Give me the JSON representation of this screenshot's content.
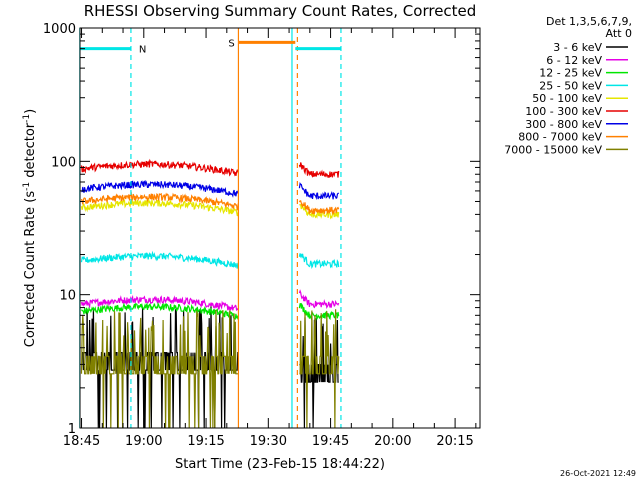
{
  "chart_data": {
    "type": "line",
    "title": "RHESSI Observing Summary Count Rates, Corrected",
    "xlabel": "Start Time (23-Feb-15 18:44:22)",
    "ylabel_main": "Corrected Count Rate (s",
    "ylabel_sup1": "-1",
    "ylabel_mid": " detector",
    "ylabel_sup2": "-1",
    "ylabel_end": ")",
    "y_scale": "log",
    "ylim": [
      1,
      1000
    ],
    "xlim_minutes": [
      -0.37,
      96.0
    ],
    "x_ticks": [
      {
        "label": "18:45",
        "t": 0
      },
      {
        "label": "19:00",
        "t": 15
      },
      {
        "label": "19:15",
        "t": 30
      },
      {
        "label": "19:30",
        "t": 45
      },
      {
        "label": "19:45",
        "t": 60
      },
      {
        "label": "20:00",
        "t": 75
      },
      {
        "label": "20:15",
        "t": 90
      }
    ],
    "y_ticks": [
      {
        "label": "1",
        "v": 1
      },
      {
        "label": "10",
        "v": 10
      },
      {
        "label": "100",
        "v": 100
      },
      {
        "label": "1000",
        "v": 1000
      }
    ],
    "legend_header": [
      "Det 1,3,5,6,7,9,",
      "Att 0"
    ],
    "legend_position": "right",
    "series": [
      {
        "name": "3 - 6 keV",
        "color": "#000000",
        "level_a": 3.2,
        "level_b": 2.6,
        "noise": "high"
      },
      {
        "name": "6 - 12 keV",
        "color": "#e600e6",
        "level_a": 8.5,
        "level_b": 8.5,
        "noise": "low"
      },
      {
        "name": "12 - 25 keV",
        "color": "#00e600",
        "level_a": 7.5,
        "level_b": 7.0,
        "noise": "low"
      },
      {
        "name": "25 - 50 keV",
        "color": "#00e6e6",
        "level_a": 18,
        "level_b": 17,
        "noise": "low"
      },
      {
        "name": "50 - 100 keV",
        "color": "#e6e600",
        "level_a": 45,
        "level_b": 40,
        "noise": "low"
      },
      {
        "name": "100 - 300 keV",
        "color": "#e60000",
        "level_a": 88,
        "level_b": 80,
        "noise": "low"
      },
      {
        "name": "300 - 800 keV",
        "color": "#0000e6",
        "level_a": 62,
        "level_b": 55,
        "noise": "low"
      },
      {
        "name": "800 - 7000 keV",
        "color": "#ff8000",
        "level_a": 50,
        "level_b": 43,
        "noise": "low"
      },
      {
        "name": "7000 - 15000 keV",
        "color": "#808000",
        "level_a": 3.0,
        "level_b": 3.0,
        "noise": "high"
      }
    ],
    "data_intervals": [
      [
        0,
        37.8
      ],
      [
        52.5,
        62.0
      ]
    ],
    "intervals": [
      {
        "label": "N",
        "start": -0.4,
        "end": 11.9,
        "y": 700,
        "color": "#00e6e6"
      },
      {
        "label": "",
        "start": 51.5,
        "end": 62.5,
        "y": 700,
        "color": "#00e6e6"
      },
      {
        "label": "S",
        "start": 37.8,
        "end": 51.5,
        "y": 780,
        "color": "#ff8000"
      }
    ],
    "vlines": [
      {
        "t": -0.4,
        "color": "#00e6e6",
        "style": "solid"
      },
      {
        "t": 11.9,
        "color": "#00e6e6",
        "style": "dashed"
      },
      {
        "t": 37.8,
        "color": "#ff8000",
        "style": "solid"
      },
      {
        "t": 50.7,
        "color": "#00e6e6",
        "style": "solid"
      },
      {
        "t": 52.0,
        "color": "#ff8000",
        "style": "dashed"
      },
      {
        "t": 62.5,
        "color": "#00e6e6",
        "style": "dashed"
      }
    ],
    "footer": "26-Oct-2021 12:49"
  }
}
